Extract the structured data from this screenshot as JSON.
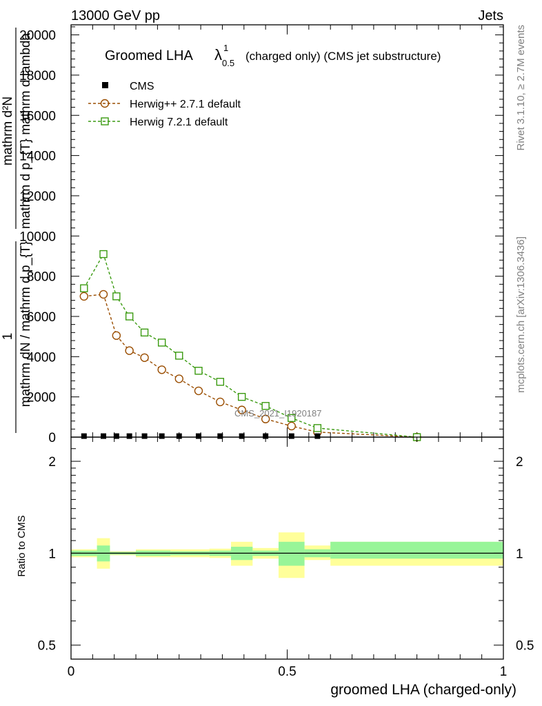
{
  "header": {
    "left": "13000 GeV pp",
    "right": "Jets"
  },
  "side_labels": {
    "rivet": "Rivet 3.1.10, ≥ 2.7M events",
    "mcplots": "mcplots.cern.ch [arXiv:1306.3436]"
  },
  "watermark": "CMS_2021_I1920187",
  "title": {
    "main": "Groomed LHA",
    "lambda": "λ",
    "sup": "1",
    "sub": "0.5",
    "rest": "(charged only) (CMS jet substructure)"
  },
  "legend": {
    "cms": "CMS",
    "herwigpp": "Herwig++ 2.7.1 default",
    "herwig7": "Herwig 7.2.1 default"
  },
  "main_ylabel": {
    "top_num": "mathrm d²N",
    "top_den": "mathrm d p_{T} mathrm d lambda",
    "one": "1",
    "bottom": "mathrm dN / mathrm d p_{T}"
  },
  "ratio_ylabel": "Ratio to CMS",
  "xlabel": "groomed LHA (charged-only)",
  "colors": {
    "herwigpp": "#9a4d00",
    "herwig7": "#3a9a10",
    "band_inner": "#98f598",
    "band_outer": "#ffff9a"
  },
  "chart_data": [
    {
      "type": "line",
      "panel": "main",
      "xlim": [
        0,
        1
      ],
      "ylim": [
        0,
        20500
      ],
      "yticks": [
        0,
        2000,
        4000,
        6000,
        8000,
        10000,
        12000,
        14000,
        16000,
        18000,
        20000
      ],
      "ytick_labels": [
        "0",
        "2000",
        "4000",
        "6000",
        "8000",
        "10000",
        "12000",
        "14000",
        "16000",
        "18000",
        "20000"
      ],
      "cms": {
        "name": "CMS",
        "x": [
          0.03,
          0.075,
          0.105,
          0.135,
          0.17,
          0.21,
          0.25,
          0.295,
          0.345,
          0.395,
          0.45,
          0.51,
          0.57
        ],
        "y": [
          50,
          50,
          50,
          50,
          50,
          50,
          50,
          50,
          50,
          50,
          50,
          50,
          50
        ]
      },
      "series": [
        {
          "name": "Herwig++ 2.7.1 default",
          "marker": "circle",
          "x": [
            0.03,
            0.075,
            0.105,
            0.135,
            0.17,
            0.21,
            0.25,
            0.295,
            0.345,
            0.395,
            0.45,
            0.51,
            0.57,
            0.8
          ],
          "y": [
            7000,
            7100,
            5050,
            4300,
            3950,
            3350,
            2900,
            2300,
            1750,
            1350,
            900,
            550,
            250,
            0
          ]
        },
        {
          "name": "Herwig 7.2.1 default",
          "marker": "square",
          "x": [
            0.03,
            0.075,
            0.105,
            0.135,
            0.17,
            0.21,
            0.25,
            0.295,
            0.345,
            0.395,
            0.45,
            0.51,
            0.57,
            0.8
          ],
          "y": [
            7400,
            9100,
            7000,
            6000,
            5200,
            4700,
            4050,
            3300,
            2750,
            2000,
            1550,
            950,
            450,
            0
          ]
        }
      ]
    },
    {
      "type": "area",
      "panel": "ratio",
      "xlim": [
        0,
        1
      ],
      "ylim": [
        0.45,
        2.4
      ],
      "log_y": true,
      "yticks": [
        0.5,
        1,
        2
      ],
      "ytick_labels": [
        "0.5",
        "1",
        "2"
      ],
      "xticks": [
        0,
        0.5,
        1
      ],
      "xtick_labels": [
        "0",
        "0.5",
        "1"
      ],
      "bins": [
        {
          "lo": 0.0,
          "hi": 0.06,
          "inner": [
            0.98,
            1.02
          ],
          "outer": [
            0.97,
            1.03
          ]
        },
        {
          "lo": 0.06,
          "hi": 0.09,
          "inner": [
            0.94,
            1.06
          ],
          "outer": [
            0.89,
            1.12
          ]
        },
        {
          "lo": 0.09,
          "hi": 0.15,
          "inner": [
            0.99,
            1.01
          ],
          "outer": [
            0.985,
            1.015
          ]
        },
        {
          "lo": 0.15,
          "hi": 0.23,
          "inner": [
            0.98,
            1.02
          ],
          "outer": [
            0.97,
            1.03
          ]
        },
        {
          "lo": 0.23,
          "hi": 0.32,
          "inner": [
            0.985,
            1.015
          ],
          "outer": [
            0.97,
            1.03
          ]
        },
        {
          "lo": 0.32,
          "hi": 0.37,
          "inner": [
            0.98,
            1.02
          ],
          "outer": [
            0.965,
            1.035
          ]
        },
        {
          "lo": 0.37,
          "hi": 0.42,
          "inner": [
            0.95,
            1.05
          ],
          "outer": [
            0.91,
            1.09
          ]
        },
        {
          "lo": 0.42,
          "hi": 0.48,
          "inner": [
            0.98,
            1.02
          ],
          "outer": [
            0.96,
            1.04
          ]
        },
        {
          "lo": 0.48,
          "hi": 0.54,
          "inner": [
            0.91,
            1.09
          ],
          "outer": [
            0.83,
            1.17
          ]
        },
        {
          "lo": 0.54,
          "hi": 0.6,
          "inner": [
            0.97,
            1.03
          ],
          "outer": [
            0.95,
            1.06
          ]
        },
        {
          "lo": 0.6,
          "hi": 1.0,
          "inner": [
            0.96,
            1.09
          ],
          "outer": [
            0.91,
            1.09
          ]
        }
      ],
      "reference": 1
    }
  ]
}
